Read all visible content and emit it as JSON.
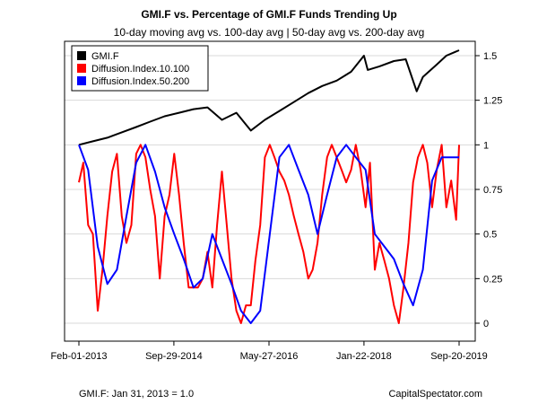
{
  "chart_data": {
    "type": "line",
    "title": "GMI.F vs. Percentage of GMI.F Funds Trending Up",
    "subtitle": "10-day moving avg vs. 100-day avg | 50-day avg vs. 200-day avg",
    "xlabel": "",
    "ylabel": "",
    "x_tick_labels": [
      "Feb-01-2013",
      "Sep-29-2014",
      "May-27-2016",
      "Jan-22-2018",
      "Sep-20-2019"
    ],
    "x_tick_dates": [
      "2013-02-01",
      "2014-09-29",
      "2016-05-27",
      "2018-01-22",
      "2019-09-20"
    ],
    "xlim": [
      "2013-02-01",
      "2019-09-20"
    ],
    "ylim": [
      0,
      1.5
    ],
    "y_ticks": [
      0,
      0.25,
      0.5,
      0.75,
      1,
      1.25,
      1.5
    ],
    "y_tick_labels": [
      "0",
      "0.25",
      "0.5",
      "0.75",
      "1",
      "1.25",
      "1.5"
    ],
    "y_axis_side": "right",
    "grid": "horizontal",
    "legend_position": "top-left",
    "series": [
      {
        "name": "GMI.F",
        "color": "#000000",
        "x": [
          "2013-02-01",
          "2013-05-01",
          "2013-08-01",
          "2013-11-01",
          "2014-02-01",
          "2014-05-01",
          "2014-08-01",
          "2014-11-01",
          "2015-02-01",
          "2015-05-01",
          "2015-08-01",
          "2015-11-01",
          "2016-02-01",
          "2016-05-01",
          "2016-08-01",
          "2016-11-01",
          "2017-02-01",
          "2017-05-01",
          "2017-08-01",
          "2017-11-01",
          "2018-01-22",
          "2018-02-15",
          "2018-05-01",
          "2018-08-01",
          "2018-10-15",
          "2018-12-24",
          "2019-02-01",
          "2019-05-01",
          "2019-07-01",
          "2019-09-20"
        ],
        "values": [
          1.0,
          1.02,
          1.04,
          1.07,
          1.1,
          1.13,
          1.16,
          1.18,
          1.2,
          1.21,
          1.14,
          1.18,
          1.08,
          1.14,
          1.19,
          1.24,
          1.29,
          1.33,
          1.36,
          1.41,
          1.5,
          1.42,
          1.44,
          1.47,
          1.48,
          1.3,
          1.38,
          1.45,
          1.5,
          1.53
        ]
      },
      {
        "name": "Diffusion.Index.10.100",
        "color": "#ff0000",
        "x": [
          "2013-02-01",
          "2013-03-01",
          "2013-04-01",
          "2013-05-01",
          "2013-06-01",
          "2013-07-01",
          "2013-08-01",
          "2013-09-01",
          "2013-10-01",
          "2013-11-01",
          "2013-12-01",
          "2014-01-01",
          "2014-02-01",
          "2014-03-01",
          "2014-04-01",
          "2014-05-01",
          "2014-06-01",
          "2014-07-01",
          "2014-08-01",
          "2014-09-01",
          "2014-10-01",
          "2014-11-01",
          "2014-12-01",
          "2015-01-01",
          "2015-02-01",
          "2015-03-01",
          "2015-04-01",
          "2015-05-01",
          "2015-06-01",
          "2015-07-01",
          "2015-08-01",
          "2015-09-01",
          "2015-10-01",
          "2015-11-01",
          "2015-12-01",
          "2016-01-01",
          "2016-02-01",
          "2016-03-01",
          "2016-04-01",
          "2016-05-01",
          "2016-06-01",
          "2016-07-01",
          "2016-08-01",
          "2016-09-01",
          "2016-10-01",
          "2016-11-01",
          "2016-12-01",
          "2017-01-01",
          "2017-02-01",
          "2017-03-01",
          "2017-04-01",
          "2017-05-01",
          "2017-06-01",
          "2017-07-01",
          "2017-08-01",
          "2017-09-01",
          "2017-10-01",
          "2017-11-01",
          "2017-12-01",
          "2018-01-01",
          "2018-02-01",
          "2018-03-01",
          "2018-04-01",
          "2018-05-01",
          "2018-06-01",
          "2018-07-01",
          "2018-08-01",
          "2018-09-01",
          "2018-10-01",
          "2018-11-01",
          "2018-12-01",
          "2019-01-01",
          "2019-02-01",
          "2019-03-01",
          "2019-04-01",
          "2019-05-01",
          "2019-06-01",
          "2019-07-01",
          "2019-08-01",
          "2019-09-01",
          "2019-09-20"
        ],
        "values": [
          0.79,
          0.9,
          0.55,
          0.5,
          0.07,
          0.3,
          0.6,
          0.85,
          0.95,
          0.6,
          0.45,
          0.55,
          0.95,
          1.0,
          0.93,
          0.75,
          0.6,
          0.25,
          0.6,
          0.72,
          0.95,
          0.72,
          0.45,
          0.2,
          0.2,
          0.2,
          0.25,
          0.4,
          0.2,
          0.55,
          0.85,
          0.55,
          0.25,
          0.07,
          0.0,
          0.1,
          0.1,
          0.35,
          0.55,
          0.93,
          1.0,
          0.93,
          0.85,
          0.8,
          0.72,
          0.6,
          0.5,
          0.4,
          0.25,
          0.3,
          0.45,
          0.72,
          0.93,
          1.0,
          0.93,
          0.86,
          0.79,
          0.86,
          1.0,
          0.86,
          0.65,
          0.9,
          0.3,
          0.45,
          0.35,
          0.25,
          0.1,
          0.0,
          0.2,
          0.45,
          0.79,
          0.93,
          1.0,
          0.9,
          0.65,
          0.86,
          1.0,
          0.65,
          0.8,
          0.58,
          1.0
        ]
      },
      {
        "name": "Diffusion.Index.50.200",
        "color": "#0000ff",
        "x": [
          "2013-02-01",
          "2013-04-01",
          "2013-06-01",
          "2013-08-01",
          "2013-10-01",
          "2013-12-01",
          "2014-02-01",
          "2014-04-01",
          "2014-06-01",
          "2014-08-01",
          "2014-10-01",
          "2014-12-01",
          "2015-02-01",
          "2015-04-01",
          "2015-06-01",
          "2015-08-01",
          "2015-10-01",
          "2015-12-01",
          "2016-02-01",
          "2016-04-01",
          "2016-06-01",
          "2016-08-01",
          "2016-10-01",
          "2016-12-01",
          "2017-02-01",
          "2017-04-01",
          "2017-06-01",
          "2017-08-01",
          "2017-10-01",
          "2017-12-01",
          "2018-02-01",
          "2018-04-01",
          "2018-06-01",
          "2018-08-01",
          "2018-10-01",
          "2018-12-01",
          "2019-02-01",
          "2019-04-01",
          "2019-06-01",
          "2019-09-20"
        ],
        "values": [
          1.0,
          0.86,
          0.43,
          0.22,
          0.3,
          0.6,
          0.9,
          1.0,
          0.85,
          0.65,
          0.5,
          0.36,
          0.2,
          0.25,
          0.5,
          0.36,
          0.22,
          0.07,
          0.0,
          0.07,
          0.5,
          0.93,
          1.0,
          0.86,
          0.72,
          0.5,
          0.72,
          0.93,
          1.0,
          0.93,
          0.86,
          0.5,
          0.43,
          0.36,
          0.22,
          0.1,
          0.3,
          0.8,
          0.93,
          0.93
        ]
      }
    ]
  },
  "footer": {
    "left": "GMI.F: Jan 31, 2013 = 1.0",
    "right": "CapitalSpectator.com"
  }
}
